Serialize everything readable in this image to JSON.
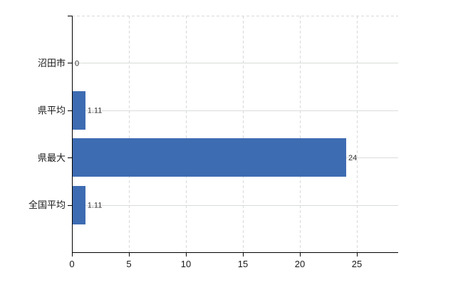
{
  "chart_data": {
    "type": "bar",
    "orientation": "horizontal",
    "title": "",
    "xlabel": "",
    "ylabel": "",
    "categories": [
      "沼田市",
      "県平均",
      "県最大",
      "全国平均"
    ],
    "values": [
      0,
      1.11,
      24,
      1.11
    ],
    "data_labels": [
      "0",
      "1.11",
      "24",
      "1.11"
    ],
    "xlim": [
      0,
      28.625
    ],
    "xticks": [
      0,
      5,
      10,
      15,
      20,
      25
    ],
    "xtick_labels": [
      "0",
      "5",
      "10",
      "15",
      "20",
      "25"
    ],
    "grid": true,
    "legend": false,
    "colors": {
      "background": "#ffffff",
      "bar": "#3e6cb2",
      "axis": "#000000",
      "h_gridline": "#d8ddd8",
      "v_gridline": "#d9d9dd",
      "axis_label": "#1a1a1a",
      "data_label": "#333333"
    }
  }
}
